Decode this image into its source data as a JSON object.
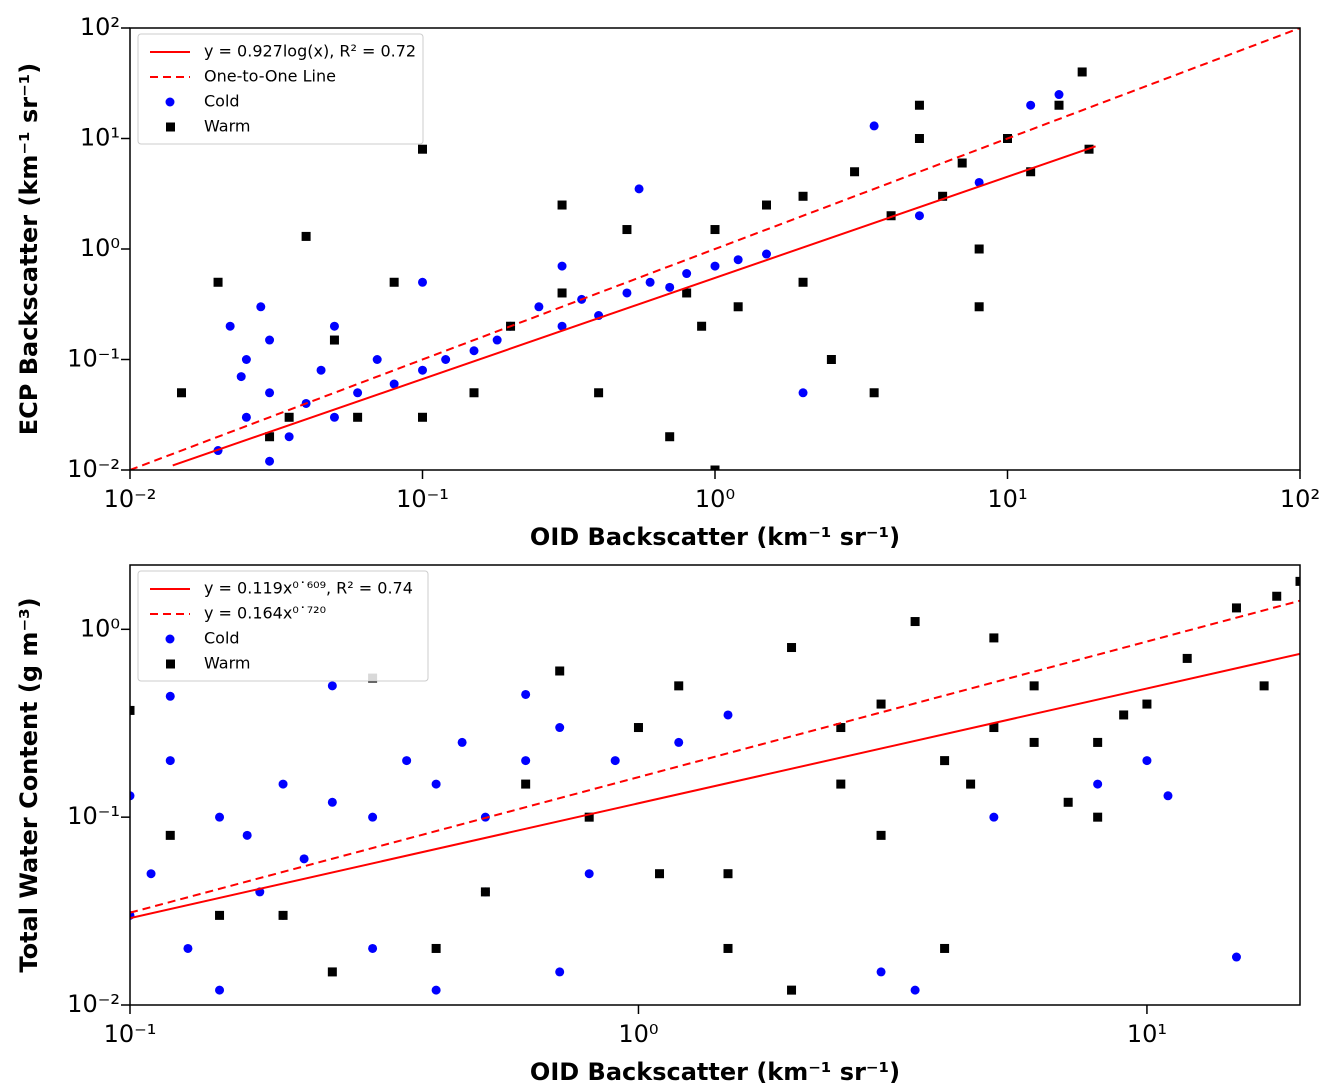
{
  "chart_data": [
    {
      "type": "scatter",
      "xlabel": "OID Backscatter (km⁻¹ sr⁻¹)",
      "ylabel": "ECP Backscatter (km⁻¹ sr⁻¹)",
      "xscale": "log",
      "yscale": "log",
      "xlim": [
        0.01,
        100
      ],
      "ylim": [
        0.01,
        100
      ],
      "xticks": [
        {
          "value": 0.01,
          "label": "10⁻²"
        },
        {
          "value": 0.1,
          "label": "10⁻¹"
        },
        {
          "value": 1,
          "label": "10⁰"
        },
        {
          "value": 10,
          "label": "10¹"
        },
        {
          "value": 100,
          "label": "10²"
        }
      ],
      "yticks": [
        {
          "value": 0.01,
          "label": "10⁻²"
        },
        {
          "value": 0.1,
          "label": "10⁻¹"
        },
        {
          "value": 1,
          "label": "10⁰"
        },
        {
          "value": 10,
          "label": "10¹"
        },
        {
          "value": 100,
          "label": "10²"
        }
      ],
      "legend": "upper left",
      "series": [
        {
          "name": "y = 0.927log(x), R² = 0.72",
          "color": "#ff0000",
          "line": "solid",
          "x": [
            0.014,
            20
          ],
          "values": [
            0.011,
            8.5
          ]
        },
        {
          "name": "One-to-One Line",
          "color": "#ff0000",
          "line": "dashed",
          "x": [
            0.01,
            100
          ],
          "values": [
            0.01,
            100
          ]
        },
        {
          "name": "Cold",
          "color": "#0000ff",
          "marker": "circle",
          "x": [
            0.02,
            0.022,
            0.025,
            0.025,
            0.03,
            0.03,
            0.035,
            0.04,
            0.045,
            0.05,
            0.06,
            0.07,
            0.08,
            0.1,
            0.12,
            0.15,
            0.18,
            0.2,
            0.25,
            0.3,
            0.35,
            0.4,
            0.5,
            0.6,
            0.7,
            0.8,
            1.0,
            1.2,
            1.5,
            2.0,
            3.5,
            5,
            8,
            12,
            15,
            0.024,
            0.028,
            0.03,
            0.05,
            0.1,
            0.3,
            0.55
          ],
          "values": [
            0.015,
            0.2,
            0.1,
            0.03,
            0.05,
            0.15,
            0.02,
            0.04,
            0.08,
            0.03,
            0.05,
            0.1,
            0.06,
            0.08,
            0.1,
            0.12,
            0.15,
            0.2,
            0.3,
            0.2,
            0.35,
            0.25,
            0.4,
            0.5,
            0.45,
            0.6,
            0.7,
            0.8,
            0.9,
            0.05,
            13,
            2,
            4,
            20,
            25,
            0.07,
            0.3,
            0.012,
            0.2,
            0.5,
            0.7,
            3.5
          ]
        },
        {
          "name": "Warm",
          "color": "#000000",
          "marker": "square",
          "x": [
            0.015,
            0.02,
            0.03,
            0.04,
            0.06,
            0.08,
            0.1,
            0.15,
            0.2,
            0.3,
            0.4,
            0.5,
            0.7,
            0.8,
            1.0,
            1.2,
            1.5,
            2,
            2.5,
            3,
            4,
            5,
            6,
            7,
            8,
            10,
            12,
            15,
            18,
            19,
            0.05,
            0.1,
            0.3,
            1,
            2,
            3.5,
            5,
            8,
            0.035,
            0.9
          ],
          "values": [
            0.05,
            0.5,
            0.02,
            1.3,
            0.03,
            0.5,
            8,
            0.05,
            0.2,
            2.5,
            0.05,
            1.5,
            0.02,
            0.4,
            1.5,
            0.3,
            2.5,
            3,
            0.1,
            5,
            2,
            10,
            3,
            6,
            1,
            10,
            5,
            20,
            40,
            8,
            0.15,
            0.03,
            0.4,
            0.01,
            0.5,
            0.05,
            20,
            0.3,
            0.03,
            0.2
          ]
        }
      ]
    },
    {
      "type": "scatter",
      "xlabel": "OID Backscatter (km⁻¹ sr⁻¹)",
      "ylabel": "Total Water Content (g m⁻³)",
      "xscale": "log",
      "yscale": "log",
      "xlim": [
        0.1,
        20
      ],
      "ylim": [
        0.01,
        2.2
      ],
      "xticks": [
        {
          "value": 0.1,
          "label": "10⁻¹"
        },
        {
          "value": 1,
          "label": "10⁰"
        },
        {
          "value": 10,
          "label": "10¹"
        }
      ],
      "yticks": [
        {
          "value": 0.01,
          "label": "10⁻²"
        },
        {
          "value": 0.1,
          "label": "10⁻¹"
        },
        {
          "value": 1,
          "label": "10⁰"
        }
      ],
      "legend": "upper left",
      "series": [
        {
          "name": "y = 0.119x⁰˙⁶⁰⁹, R² = 0.74",
          "color": "#ff0000",
          "line": "solid",
          "x": [
            0.1,
            20
          ],
          "values": [
            0.029,
            0.74
          ]
        },
        {
          "name": "y = 0.164x⁰˙⁷²⁰",
          "color": "#ff0000",
          "line": "dashed",
          "x": [
            0.1,
            20
          ],
          "values": [
            0.031,
            1.42
          ]
        },
        {
          "name": "Cold",
          "color": "#0000ff",
          "marker": "circle",
          "x": [
            0.1,
            0.1,
            0.11,
            0.12,
            0.13,
            0.15,
            0.17,
            0.2,
            0.22,
            0.25,
            0.3,
            0.35,
            0.4,
            0.45,
            0.5,
            0.6,
            0.7,
            0.8,
            1.0,
            1.2,
            1.5,
            0.15,
            0.2,
            0.3,
            0.5,
            0.7,
            1.0,
            3,
            3.5,
            5,
            8,
            10,
            11,
            15,
            0.12,
            0.25,
            0.4,
            0.6,
            0.9,
            0.18
          ],
          "values": [
            0.13,
            0.03,
            0.05,
            0.44,
            0.02,
            0.1,
            0.08,
            0.15,
            0.06,
            0.12,
            0.1,
            0.2,
            0.15,
            0.25,
            0.1,
            0.2,
            0.3,
            0.05,
            0.3,
            0.25,
            0.35,
            0.012,
            0.03,
            0.02,
            0.04,
            0.015,
            0.3,
            0.015,
            0.012,
            0.1,
            0.15,
            0.2,
            0.13,
            0.018,
            0.2,
            0.5,
            0.012,
            0.45,
            0.2,
            0.04
          ]
        },
        {
          "name": "Warm",
          "color": "#000000",
          "marker": "square",
          "x": [
            0.1,
            0.12,
            0.15,
            0.2,
            0.3,
            0.4,
            0.5,
            0.6,
            0.8,
            1.0,
            1.2,
            1.5,
            2,
            2.5,
            3,
            3.5,
            4,
            5,
            6,
            7,
            8,
            10,
            12,
            15,
            18,
            20,
            0.7,
            1.5,
            2,
            3,
            4,
            5,
            6,
            8,
            1.1,
            2.5,
            4.5,
            9,
            17,
            0.25
          ],
          "values": [
            0.37,
            0.08,
            0.03,
            0.03,
            0.55,
            0.02,
            0.04,
            0.15,
            0.1,
            0.3,
            0.5,
            0.05,
            0.8,
            0.15,
            0.4,
            1.1,
            0.2,
            0.3,
            0.5,
            0.12,
            0.25,
            0.4,
            0.7,
            1.3,
            1.5,
            1.8,
            0.6,
            0.02,
            0.012,
            0.08,
            0.02,
            0.9,
            0.25,
            0.1,
            0.05,
            0.3,
            0.15,
            0.35,
            0.5,
            0.015
          ]
        }
      ]
    }
  ]
}
